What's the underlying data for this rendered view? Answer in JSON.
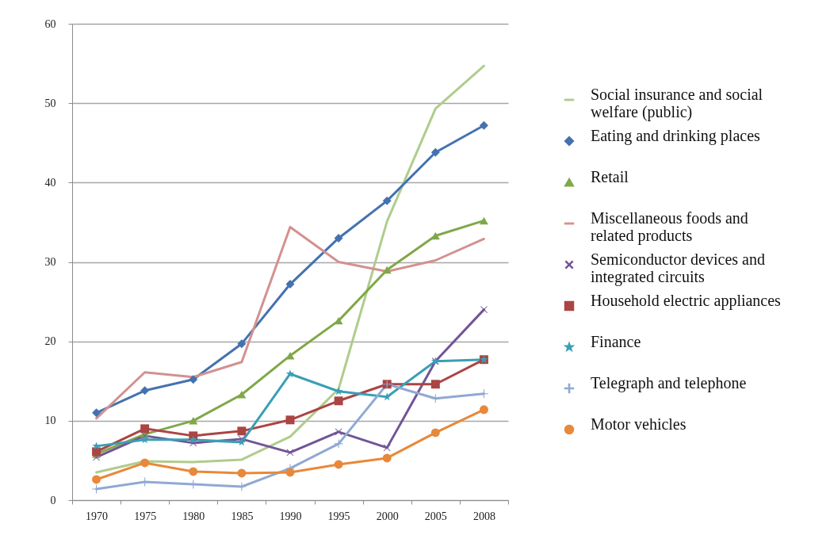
{
  "chart_data": {
    "type": "line",
    "categories": [
      "1970",
      "1975",
      "1980",
      "1985",
      "1990",
      "1995",
      "2000",
      "2005",
      "2008"
    ],
    "ylim": [
      0,
      60
    ],
    "yticks": [
      0,
      10,
      20,
      30,
      40,
      50,
      60
    ],
    "grid": "y",
    "legend": "right",
    "line_style": "solid",
    "series": [
      {
        "name": "Social insurance and social welfare (public)",
        "color": "#b0cc8c",
        "marker": "none",
        "values": [
          3.5,
          4.9,
          4.8,
          5.1,
          8.0,
          14.0,
          35.1,
          49.3,
          54.7
        ]
      },
      {
        "name": "Eating and drinking places",
        "color": "#4472b0",
        "marker": "diamond",
        "values": [
          11.0,
          13.8,
          15.2,
          19.7,
          27.2,
          33.0,
          37.7,
          43.8,
          47.2
        ]
      },
      {
        "name": "Retail",
        "color": "#80a848",
        "marker": "triangle",
        "values": [
          5.8,
          8.3,
          10.0,
          13.3,
          18.2,
          22.6,
          29.0,
          33.3,
          35.2
        ]
      },
      {
        "name": "Miscellaneous foods and related products",
        "color": "#d3918f",
        "marker": "none",
        "values": [
          10.3,
          16.1,
          15.5,
          17.4,
          34.4,
          30.0,
          28.8,
          30.2,
          32.9
        ]
      },
      {
        "name": "Semiconductor devices and integrated circuits",
        "color": "#715596",
        "marker": "x",
        "values": [
          5.4,
          8.1,
          7.2,
          7.7,
          6.0,
          8.6,
          6.6,
          17.5,
          24.0
        ]
      },
      {
        "name": "Household electric appliances",
        "color": "#aa4543",
        "marker": "square",
        "values": [
          6.1,
          9.0,
          8.1,
          8.7,
          10.1,
          12.5,
          14.6,
          14.6,
          17.7
        ]
      },
      {
        "name": "Finance",
        "color": "#3a9fb5",
        "marker": "star",
        "values": [
          6.8,
          7.6,
          7.6,
          7.3,
          15.9,
          13.7,
          13.0,
          17.5,
          17.7
        ]
      },
      {
        "name": "Telegraph and telephone",
        "color": "#90a9d3",
        "marker": "cross",
        "values": [
          1.4,
          2.3,
          2.0,
          1.7,
          4.0,
          7.1,
          14.6,
          12.8,
          13.4
        ]
      },
      {
        "name": "Motor vehicles",
        "color": "#e8883a",
        "marker": "circle",
        "values": [
          2.6,
          4.7,
          3.6,
          3.4,
          3.5,
          4.5,
          5.3,
          8.5,
          11.4
        ]
      }
    ]
  }
}
